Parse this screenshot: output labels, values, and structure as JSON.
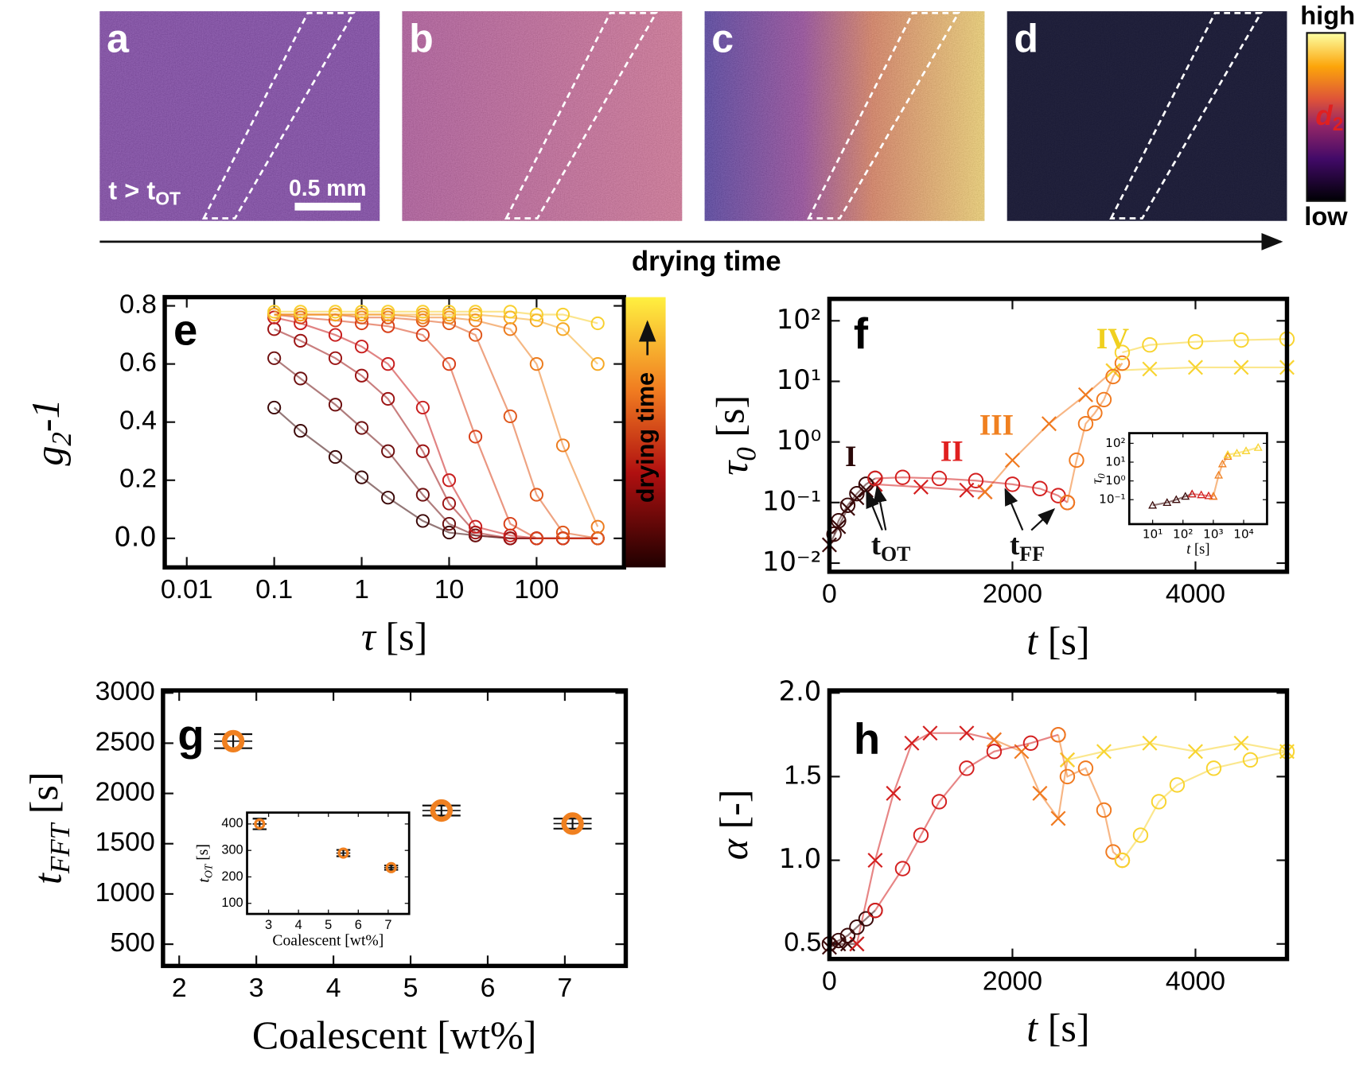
{
  "top": {
    "images": [
      "a",
      "b",
      "c",
      "d"
    ],
    "time_label": [
      {
        "t": "t > t"
      },
      {
        "t": "OT",
        "sub": true
      }
    ],
    "scale_bar": "0.5 mm",
    "colorbar": {
      "high": "high",
      "low": "low",
      "symbol": [
        {
          "t": "d",
          "i": true
        },
        {
          "t": "2",
          "sub": true
        }
      ]
    },
    "axis_label": "drying time"
  },
  "chart_data": [
    {
      "panel": "e",
      "type": "scatter",
      "xlog": true,
      "xlim": [
        0.0056,
        1000
      ],
      "ylim": [
        -0.1,
        0.83
      ],
      "xticks": [
        0.01,
        0.1,
        1,
        10,
        100
      ],
      "yticks": [
        {
          "value": 0,
          "label": "0.0"
        },
        0.2,
        0.4,
        0.6,
        0.8
      ],
      "xlabel": [
        {
          "t": "τ",
          "i": true
        },
        {
          "t": " [s]"
        }
      ],
      "ylabel": [
        {
          "t": "g",
          "i": true
        },
        {
          "t": "2",
          "i": true,
          "sub": true
        },
        {
          "t": "-1",
          "i": true
        }
      ],
      "colorbar_label": "drying time",
      "series": [
        {
          "marker": "circle",
          "color": "#3b0808",
          "x": [
            0.1,
            0.2,
            0.5,
            1,
            2,
            5,
            10,
            20,
            50,
            100,
            200,
            500
          ],
          "values": [
            0.45,
            0.37,
            0.28,
            0.21,
            0.14,
            0.06,
            0.02,
            0.01,
            0,
            0,
            0,
            0
          ]
        },
        {
          "marker": "circle",
          "color": "#6e1010",
          "x": [
            0.1,
            0.2,
            0.5,
            1,
            2,
            5,
            10,
            20,
            50,
            100,
            200,
            500
          ],
          "values": [
            0.62,
            0.55,
            0.46,
            0.38,
            0.3,
            0.15,
            0.05,
            0.01,
            0,
            0,
            0,
            0
          ]
        },
        {
          "marker": "circle",
          "color": "#9c1414",
          "x": [
            0.1,
            0.2,
            0.5,
            1,
            2,
            5,
            10,
            20,
            50,
            100,
            200,
            500
          ],
          "values": [
            0.72,
            0.68,
            0.62,
            0.56,
            0.48,
            0.3,
            0.12,
            0.02,
            0,
            0,
            0,
            0
          ]
        },
        {
          "marker": "circle",
          "color": "#c81e1e",
          "x": [
            0.1,
            0.2,
            0.5,
            1,
            2,
            5,
            10,
            20,
            50,
            100,
            200,
            500
          ],
          "values": [
            0.76,
            0.74,
            0.7,
            0.66,
            0.6,
            0.45,
            0.2,
            0.04,
            0.01,
            0,
            0,
            0
          ]
        },
        {
          "marker": "circle",
          "color": "#d8401a",
          "x": [
            0.1,
            0.2,
            0.5,
            1,
            2,
            5,
            10,
            20,
            50,
            100,
            200,
            500
          ],
          "values": [
            0.77,
            0.76,
            0.75,
            0.74,
            0.73,
            0.7,
            0.6,
            0.35,
            0.05,
            0,
            0,
            0
          ]
        },
        {
          "marker": "circle",
          "color": "#e0581c",
          "x": [
            0.1,
            0.2,
            0.5,
            1,
            2,
            5,
            10,
            20,
            50,
            100,
            200,
            500
          ],
          "values": [
            0.77,
            0.77,
            0.77,
            0.76,
            0.76,
            0.75,
            0.74,
            0.7,
            0.42,
            0.15,
            0.02,
            0
          ]
        },
        {
          "marker": "circle",
          "color": "#ec7c1e",
          "x": [
            0.1,
            0.2,
            0.5,
            1,
            2,
            5,
            10,
            20,
            50,
            100,
            200,
            500
          ],
          "values": [
            0.77,
            0.77,
            0.77,
            0.77,
            0.77,
            0.76,
            0.76,
            0.75,
            0.72,
            0.6,
            0.32,
            0.04
          ]
        },
        {
          "marker": "circle",
          "color": "#f5a824",
          "x": [
            0.1,
            0.2,
            0.5,
            1,
            2,
            5,
            10,
            20,
            50,
            100,
            200,
            500
          ],
          "values": [
            0.77,
            0.77,
            0.77,
            0.77,
            0.77,
            0.77,
            0.77,
            0.77,
            0.76,
            0.75,
            0.72,
            0.6
          ]
        },
        {
          "marker": "circle",
          "color": "#f8d030",
          "x": [
            0.1,
            0.2,
            0.5,
            1,
            2,
            5,
            10,
            20,
            50,
            100,
            200,
            500
          ],
          "values": [
            0.78,
            0.78,
            0.78,
            0.78,
            0.78,
            0.78,
            0.78,
            0.78,
            0.78,
            0.77,
            0.77,
            0.74
          ]
        }
      ]
    },
    {
      "panel": "f",
      "type": "scatter",
      "ylog": true,
      "xlim": [
        0,
        5000
      ],
      "ylim": [
        0.0072,
        230
      ],
      "xticks": [
        0,
        2000,
        4000
      ],
      "yticks": [
        {
          "value": 0.01,
          "label": "10⁻²"
        },
        {
          "value": 0.1,
          "label": "10⁻¹"
        },
        {
          "value": 1,
          "label": "10⁰"
        },
        {
          "value": 10,
          "label": "10¹"
        },
        {
          "value": 100,
          "label": "10²"
        }
      ],
      "xlabel": [
        {
          "t": "t",
          "i": true
        },
        {
          "t": " [s]"
        }
      ],
      "ylabel": [
        {
          "t": "τ",
          "i": true
        },
        {
          "t": "0",
          "i": true,
          "sub": true
        },
        {
          "t": " [s]"
        }
      ],
      "annotations": [
        {
          "parts": [
            {
              "t": "I"
            }
          ],
          "color": "#2a0808"
        },
        {
          "parts": [
            {
              "t": "II"
            }
          ],
          "color": "#e02020"
        },
        {
          "parts": [
            {
              "t": "III"
            }
          ],
          "color": "#f08020"
        },
        {
          "parts": [
            {
              "t": "IV"
            }
          ],
          "color": "#f0d020"
        },
        {
          "parts": [
            {
              "t": "t"
            },
            {
              "t": "OT",
              "sub": true
            }
          ],
          "color": "#111111"
        },
        {
          "parts": [
            {
              "t": "t"
            },
            {
              "t": "FF",
              "sub": true
            }
          ],
          "color": "#111111"
        }
      ],
      "series": [
        {
          "marker": "cross",
          "color": "#3a0a0a",
          "x": [
            0,
            100,
            200,
            300,
            400,
            500
          ],
          "values": [
            0.02,
            0.04,
            0.08,
            0.12,
            0.16,
            0.2
          ]
        },
        {
          "marker": "cross",
          "color": "#d42020",
          "x": [
            500,
            1000,
            1500,
            1700
          ],
          "values": [
            0.2,
            0.18,
            0.16,
            0.15
          ]
        },
        {
          "marker": "cross",
          "color": "#f07a20",
          "x": [
            1700,
            2000,
            2400,
            2800,
            3100
          ],
          "values": [
            0.15,
            0.5,
            2,
            6,
            15
          ]
        },
        {
          "marker": "cross",
          "color": "#f8d430",
          "x": [
            3100,
            3500,
            4000,
            4500,
            5000
          ],
          "values": [
            15,
            16,
            17,
            17,
            17
          ]
        },
        {
          "marker": "circle",
          "color": "#3a0a0a",
          "x": [
            50,
            100,
            200,
            300,
            400,
            500
          ],
          "values": [
            0.03,
            0.05,
            0.09,
            0.14,
            0.2,
            0.25
          ]
        },
        {
          "marker": "circle",
          "color": "#d42020",
          "x": [
            500,
            800,
            1200,
            1600,
            2000,
            2300,
            2500,
            2600
          ],
          "values": [
            0.25,
            0.26,
            0.25,
            0.23,
            0.2,
            0.17,
            0.13,
            0.1
          ]
        },
        {
          "marker": "circle",
          "color": "#f07a20",
          "x": [
            2600,
            2700,
            2800,
            2900,
            3000,
            3100,
            3200
          ],
          "values": [
            0.1,
            0.5,
            2,
            3,
            5,
            12,
            20
          ]
        },
        {
          "marker": "circle",
          "color": "#f8d430",
          "x": [
            3200,
            3500,
            4000,
            4500,
            5000
          ],
          "values": [
            30,
            40,
            45,
            48,
            50
          ]
        }
      ],
      "inset": {
        "xlog": true,
        "ylog": true,
        "xlim": [
          1.7,
          59000
        ],
        "ylim": [
          0.005,
          350
        ],
        "xticks": [
          {
            "value": 10,
            "label": "10¹"
          },
          {
            "value": 100,
            "label": "10²"
          },
          {
            "value": 1000,
            "label": "10³"
          },
          {
            "value": 10000,
            "label": "10⁴"
          }
        ],
        "yticks": [
          {
            "value": 0.1,
            "label": "10⁻¹"
          },
          {
            "value": 1,
            "label": "10⁰"
          },
          {
            "value": 10,
            "label": "10¹"
          },
          {
            "value": 100,
            "label": "10²"
          }
        ],
        "xlabel": [
          {
            "t": "t",
            "i": true
          },
          {
            "t": " [s]"
          }
        ],
        "ylabel": [
          {
            "t": "τ",
            "i": true
          },
          {
            "t": "0",
            "i": true,
            "sub": true
          }
        ],
        "series": [
          {
            "marker": "triangle",
            "color": "#3a0a0a",
            "x": [
              10,
              30,
              60,
              120,
              200
            ],
            "values": [
              0.05,
              0.07,
              0.1,
              0.15,
              0.2
            ]
          },
          {
            "marker": "triangle",
            "color": "#d42020",
            "x": [
              200,
              400,
              700,
              1000
            ],
            "values": [
              0.2,
              0.18,
              0.16,
              0.15
            ]
          },
          {
            "marker": "triangle",
            "color": "#f08020",
            "x": [
              1000,
              1500,
              2000,
              3000
            ],
            "values": [
              0.15,
              2,
              8,
              20
            ]
          },
          {
            "marker": "triangle",
            "color": "#f8d430",
            "x": [
              3000,
              6000,
              12000,
              30000
            ],
            "values": [
              25,
              30,
              40,
              60
            ]
          }
        ]
      }
    },
    {
      "panel": "g",
      "type": "errorbar",
      "xlim": [
        1.79,
        7.79
      ],
      "ylim": [
        284,
        3025
      ],
      "xticks": [
        2,
        3,
        4,
        5,
        6,
        7
      ],
      "yticks": [
        500,
        1000,
        1500,
        2000,
        2500,
        3000
      ],
      "xlabel": [
        {
          "t": "Coalescent [wt%]"
        }
      ],
      "ylabel": [
        {
          "t": "t",
          "i": true
        },
        {
          "t": "FFT",
          "i": true,
          "sub": true
        },
        {
          "t": " [s]"
        }
      ],
      "series": [
        {
          "marker": "circle",
          "color": "#f08020",
          "x": [
            2.7,
            5.4,
            7.1
          ],
          "values": [
            2520,
            1830,
            1700
          ],
          "errors": [
            70,
            50,
            50
          ]
        }
      ],
      "inset": {
        "xlim": [
          2.28,
          7.7
        ],
        "ylim": [
          60,
          443
        ],
        "xticks": [
          3,
          4,
          5,
          6,
          7
        ],
        "yticks": [
          100,
          200,
          300,
          400
        ],
        "xlabel": [
          {
            "t": "Coalescent [wt%]"
          }
        ],
        "ylabel": [
          {
            "t": "t",
            "i": true
          },
          {
            "t": "OT",
            "i": true,
            "sub": true
          },
          {
            "t": " [s]"
          }
        ],
        "series": [
          {
            "marker": "circle",
            "color": "#f08020",
            "x": [
              2.7,
              5.5,
              7.1
            ],
            "values": [
              400,
              290,
              235
            ],
            "errors": [
              20,
              12,
              8
            ]
          }
        ]
      }
    },
    {
      "panel": "h",
      "type": "scatter",
      "xlim": [
        0,
        5000
      ],
      "ylim": [
        0.41,
        2.015
      ],
      "xticks": [
        0,
        2000,
        4000
      ],
      "yticks": [
        0.5,
        {
          "value": 1,
          "label": "1.0"
        },
        1.5,
        {
          "value": 2,
          "label": "2.0"
        }
      ],
      "xlabel": [
        {
          "t": "t",
          "i": true
        },
        {
          "t": " [s]"
        }
      ],
      "ylabel": [
        {
          "t": "α",
          "i": true
        },
        {
          "t": " [-]"
        }
      ],
      "series": [
        {
          "marker": "cross",
          "color": "#3a0a0a",
          "x": [
            0,
            100,
            200,
            300
          ],
          "values": [
            0.48,
            0.5,
            0.5,
            0.5
          ]
        },
        {
          "marker": "cross",
          "color": "#d42020",
          "x": [
            300,
            500,
            700,
            900,
            1100,
            1500,
            1800
          ],
          "values": [
            0.5,
            1.0,
            1.4,
            1.7,
            1.76,
            1.76,
            1.72
          ]
        },
        {
          "marker": "cross",
          "color": "#f07a20",
          "x": [
            1800,
            2100,
            2300,
            2500,
            2600
          ],
          "values": [
            1.72,
            1.65,
            1.4,
            1.25,
            1.6
          ]
        },
        {
          "marker": "cross",
          "color": "#f8d430",
          "x": [
            2600,
            3000,
            3500,
            4000,
            4500,
            5000
          ],
          "values": [
            1.6,
            1.65,
            1.7,
            1.65,
            1.7,
            1.65
          ]
        },
        {
          "marker": "circle",
          "color": "#3a0a0a",
          "x": [
            0,
            100,
            200,
            300,
            400,
            500
          ],
          "values": [
            0.5,
            0.52,
            0.55,
            0.6,
            0.65,
            0.7
          ]
        },
        {
          "marker": "circle",
          "color": "#d42020",
          "x": [
            500,
            800,
            1000,
            1200,
            1500,
            1800,
            2200,
            2500
          ],
          "values": [
            0.7,
            0.95,
            1.15,
            1.35,
            1.55,
            1.65,
            1.7,
            1.75
          ]
        },
        {
          "marker": "circle",
          "color": "#f07a20",
          "x": [
            2500,
            2600,
            2800,
            3000,
            3100,
            3200
          ],
          "values": [
            1.75,
            1.5,
            1.55,
            1.3,
            1.05,
            1
          ]
        },
        {
          "marker": "circle",
          "color": "#f8d430",
          "x": [
            3200,
            3400,
            3600,
            3800,
            4200,
            4600,
            5000
          ],
          "values": [
            1,
            1.15,
            1.35,
            1.45,
            1.55,
            1.6,
            1.65
          ]
        }
      ]
    }
  ]
}
